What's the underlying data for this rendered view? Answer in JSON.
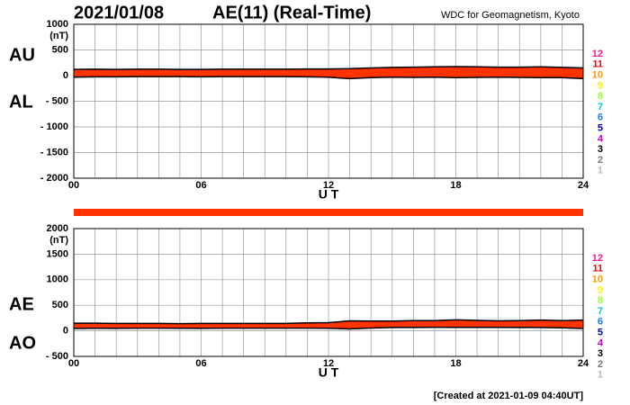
{
  "header": {
    "date": "2021/01/08",
    "title": "AE(11) (Real-Time)",
    "source": "WDC for Geomagnetism, Kyoto"
  },
  "footer": "[Created at 2021-01-09 04:40UT]",
  "station_legend": [
    {
      "label": "12",
      "color": "#ff1493"
    },
    {
      "label": "11",
      "color": "#ff0000"
    },
    {
      "label": "10",
      "color": "#ff9900"
    },
    {
      "label": "9",
      "color": "#ffee00"
    },
    {
      "label": "8",
      "color": "#99ff33"
    },
    {
      "label": "7",
      "color": "#00cccc"
    },
    {
      "label": "6",
      "color": "#1e78ff"
    },
    {
      "label": "5",
      "color": "#0000cc"
    },
    {
      "label": "4",
      "color": "#cc00cc"
    },
    {
      "label": "3",
      "color": "#000000"
    },
    {
      "label": "2",
      "color": "#777777"
    },
    {
      "label": "1",
      "color": "#bbbbbb"
    }
  ],
  "chart_data": [
    {
      "type": "line",
      "y_unit": "(nT)",
      "xlabel": "U T",
      "fill_color": "#ff3300",
      "grid": true,
      "x": [
        0,
        1,
        2,
        3,
        4,
        5,
        6,
        7,
        8,
        9,
        10,
        11,
        12,
        13,
        14,
        15,
        16,
        17,
        18,
        19,
        20,
        21,
        22,
        23,
        24
      ],
      "xlim": [
        0,
        24
      ],
      "xticks": [
        {
          "value": 0,
          "label": "00"
        },
        {
          "value": 6,
          "label": "06"
        },
        12,
        18,
        24
      ],
      "ylim": [
        -2000,
        1000
      ],
      "yticks": [
        1000,
        500,
        0,
        {
          "value": -500,
          "label": "- 500"
        },
        {
          "value": -1000,
          "label": "- 1000"
        },
        {
          "value": -1500,
          "label": "- 1500"
        },
        {
          "value": -2000,
          "label": "- 2000"
        }
      ],
      "series": [
        {
          "name": "AU",
          "color": "#000000",
          "values": [
            120,
            125,
            120,
            125,
            125,
            120,
            120,
            125,
            125,
            125,
            125,
            130,
            130,
            135,
            150,
            160,
            165,
            170,
            175,
            170,
            165,
            165,
            170,
            160,
            150
          ]
        },
        {
          "name": "AL",
          "color": "#000000",
          "values": [
            -30,
            -25,
            -25,
            -20,
            -20,
            -20,
            -25,
            -20,
            -20,
            -20,
            -20,
            -25,
            -30,
            -60,
            -40,
            -30,
            -35,
            -30,
            -40,
            -35,
            -30,
            -35,
            -40,
            -40,
            -60
          ]
        }
      ]
    },
    {
      "type": "line",
      "y_unit": "(nT)",
      "xlabel": "U T",
      "fill_color": "#ff3300",
      "grid": true,
      "x": [
        0,
        1,
        2,
        3,
        4,
        5,
        6,
        7,
        8,
        9,
        10,
        11,
        12,
        13,
        14,
        15,
        16,
        17,
        18,
        19,
        20,
        21,
        22,
        23,
        24
      ],
      "xlim": [
        0,
        24
      ],
      "xticks": [
        {
          "value": 0,
          "label": "00"
        },
        {
          "value": 6,
          "label": "06"
        },
        12,
        18,
        24
      ],
      "ylim": [
        -500,
        2000
      ],
      "yticks": [
        2000,
        1500,
        1000,
        500,
        0,
        {
          "value": -500,
          "label": "- 500"
        }
      ],
      "series": [
        {
          "name": "AE",
          "color": "#000000",
          "values": [
            150,
            150,
            145,
            145,
            145,
            140,
            145,
            145,
            145,
            145,
            145,
            155,
            160,
            195,
            190,
            190,
            200,
            200,
            215,
            205,
            195,
            200,
            210,
            200,
            210
          ]
        },
        {
          "name": "AO",
          "color": "#000000",
          "values": [
            45,
            50,
            47.5,
            52.5,
            52.5,
            50,
            47.5,
            52.5,
            52.5,
            52.5,
            52.5,
            52.5,
            50,
            37.5,
            55,
            65,
            65,
            70,
            67.5,
            67.5,
            67.5,
            65,
            65,
            60,
            45
          ]
        }
      ]
    }
  ]
}
